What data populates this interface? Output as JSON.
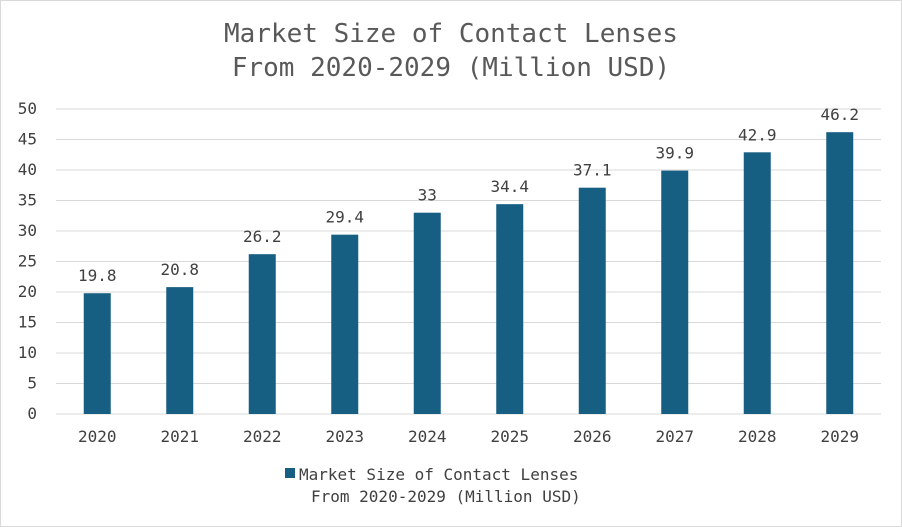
{
  "chart_data": {
    "type": "bar",
    "title_lines": [
      "Market Size of Contact Lenses",
      "From 2020-2029 (Million USD)"
    ],
    "categories": [
      "2020",
      "2021",
      "2022",
      "2023",
      "2024",
      "2025",
      "2026",
      "2027",
      "2028",
      "2029"
    ],
    "series": [
      {
        "name_lines": [
          "Market Size of Contact Lenses",
          "From 2020-2029 (Million USD)"
        ],
        "color": "#175f82",
        "values": [
          19.8,
          20.8,
          26.2,
          29.4,
          33,
          34.4,
          37.1,
          39.9,
          42.9,
          46.2
        ],
        "data_labels": [
          "19.8",
          "20.8",
          "26.2",
          "29.4",
          "33",
          "34.4",
          "37.1",
          "39.9",
          "42.9",
          "46.2"
        ]
      }
    ],
    "ylim": [
      0,
      50
    ],
    "yticks": [
      "0",
      "5",
      "10",
      "15",
      "20",
      "25",
      "30",
      "35",
      "40",
      "45",
      "50"
    ],
    "grid": true,
    "legend_position": "bottom"
  }
}
